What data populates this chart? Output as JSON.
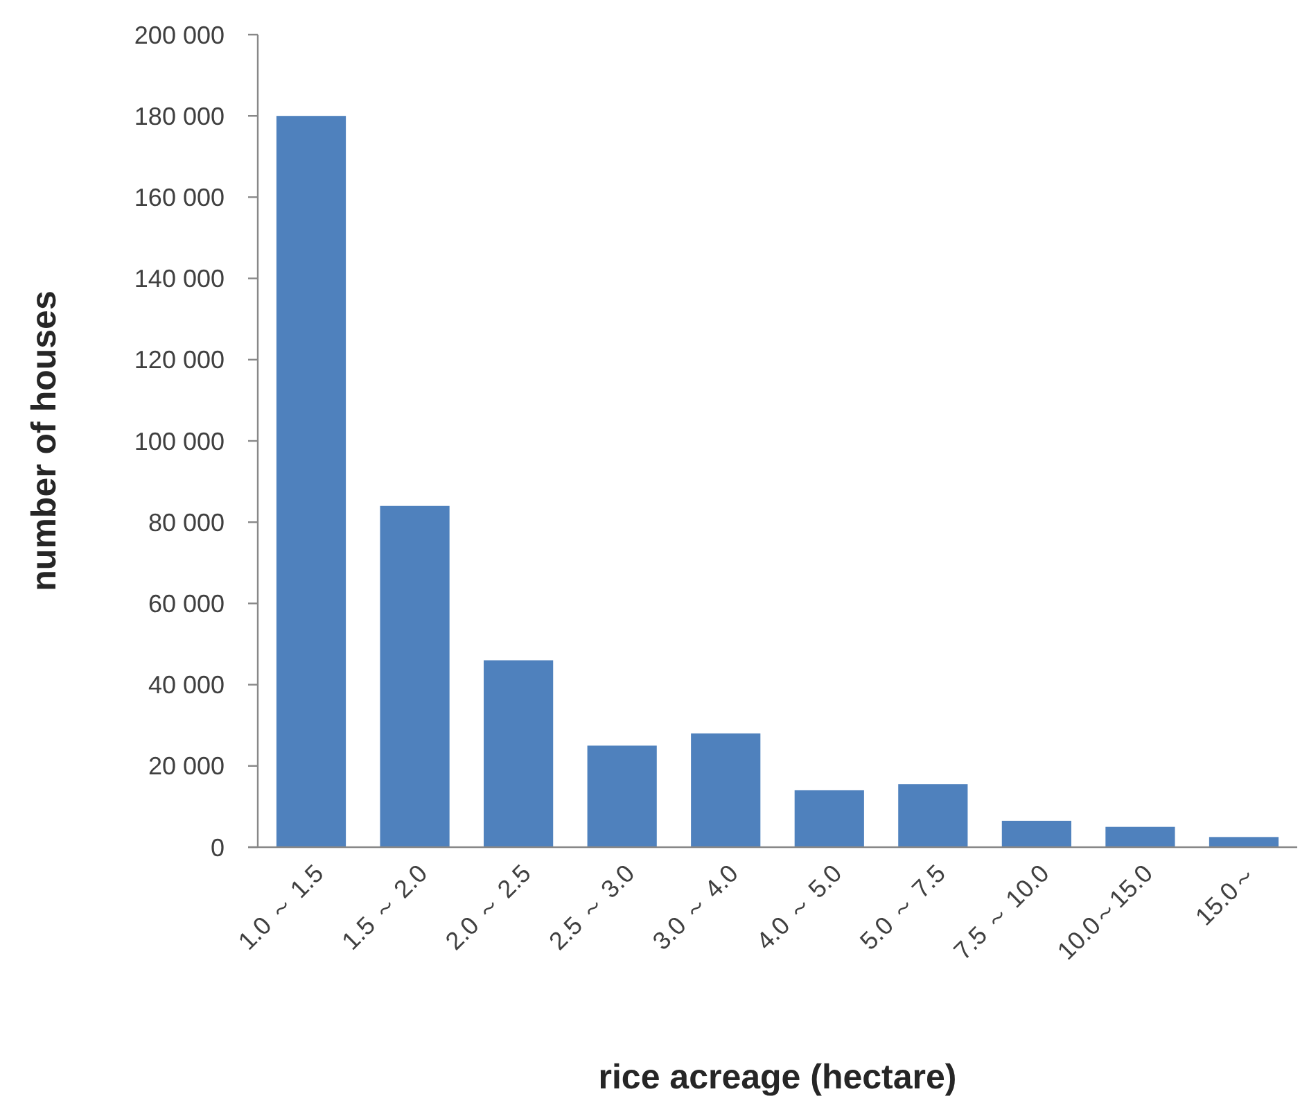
{
  "chart_data": {
    "type": "bar",
    "xlabel": "rice acreage (hectare)",
    "ylabel": "number of houses",
    "categories": [
      "1.0 ～ 1.5",
      "1.5 ～ 2.0",
      "2.0 ～ 2.5",
      "2.5 ～ 3.0",
      "3.0 ～ 4.0",
      "4.0 ～ 5.0",
      "5.0 ～ 7.5",
      "7.5 ～ 10.0",
      "10.0～15.0",
      "15.0～"
    ],
    "values": [
      180000,
      84000,
      46000,
      25000,
      28000,
      14000,
      15500,
      6500,
      5000,
      2500
    ],
    "color": "#4f81bd",
    "ylim": [
      0,
      200000
    ],
    "yticks": [
      {
        "value": 0,
        "label": "0"
      },
      {
        "value": 20000,
        "label": "20 000"
      },
      {
        "value": 40000,
        "label": "40 000"
      },
      {
        "value": 60000,
        "label": "60 000"
      },
      {
        "value": 80000,
        "label": "80 000"
      },
      {
        "value": 100000,
        "label": "100 000"
      },
      {
        "value": 120000,
        "label": "120 000"
      },
      {
        "value": 140000,
        "label": "140 000"
      },
      {
        "value": 160000,
        "label": "160 000"
      },
      {
        "value": 180000,
        "label": "180 000"
      },
      {
        "value": 200000,
        "label": "200 000"
      }
    ],
    "grid": false
  }
}
